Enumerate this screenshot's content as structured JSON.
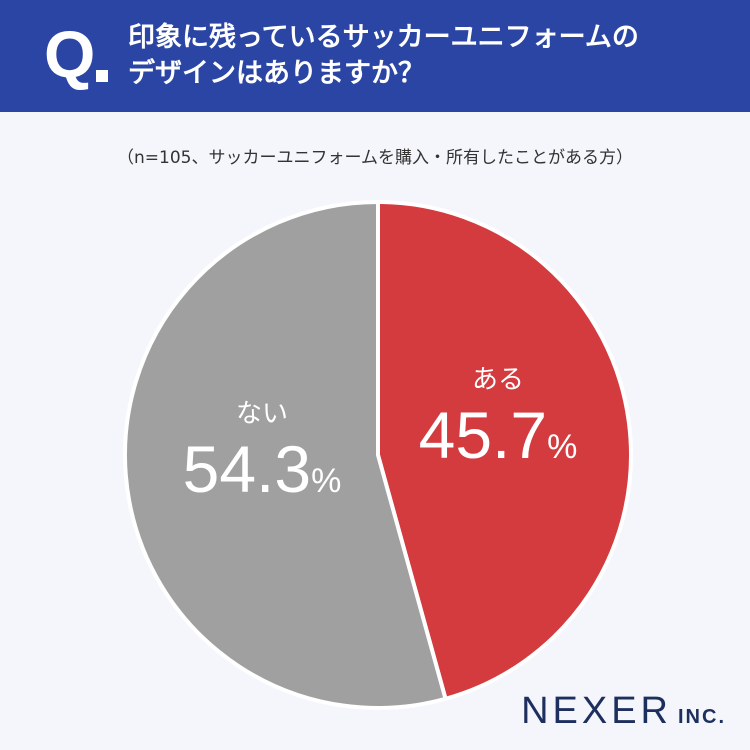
{
  "question": {
    "mark": "Q",
    "line1": "印象に残っているサッカーユニフォームの",
    "line2": "デザインはありますか？"
  },
  "note": "（n=105、サッカーユニフォームを購入・所有したことがある方）",
  "logo": {
    "main": "NEXER",
    "sub": "INC."
  },
  "colors": {
    "header": "#2a45a4",
    "aru": "#d33b3f",
    "nai": "#a0a0a0"
  },
  "chart_data": {
    "type": "pie",
    "slices": [
      {
        "label": "ある",
        "value": 45.7,
        "value_text": "45.7",
        "unit": "%",
        "color": "#d33b3f"
      },
      {
        "label": "ない",
        "value": 54.3,
        "value_text": "54.3",
        "unit": "%",
        "color": "#a0a0a0"
      }
    ]
  }
}
